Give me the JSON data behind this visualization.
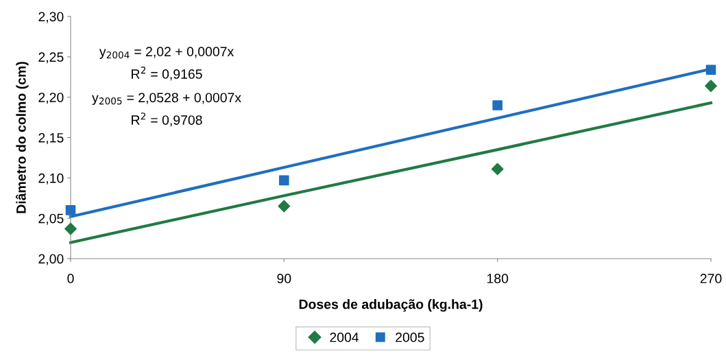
{
  "chart_data": {
    "type": "scatter",
    "xlabel": "Doses de adubação (kg.ha-1)",
    "ylabel": "Diâmetro do colmo (cm)",
    "x": [
      0,
      90,
      180,
      270
    ],
    "series": [
      {
        "name": "2004",
        "color": "#217a45",
        "marker": "diamond",
        "values": [
          2.037,
          2.065,
          2.111,
          2.214
        ]
      },
      {
        "name": "2005",
        "color": "#1f6fbf",
        "marker": "square",
        "values": [
          2.06,
          2.097,
          2.19,
          2.234
        ]
      },
      {
        "type": "line",
        "color": "#217a45",
        "values": [
          2.02,
          2.078,
          2.135,
          2.193
        ]
      },
      {
        "type": "line",
        "color": "#1f6fbf",
        "values": [
          2.052,
          2.113,
          2.174,
          2.235
        ]
      }
    ],
    "xlim": [
      0,
      270
    ],
    "xticks": [
      0,
      90,
      180,
      270
    ],
    "ylim": [
      2.0,
      2.3
    ],
    "yticks": [
      {
        "value": 2.0,
        "label": "2,00"
      },
      {
        "value": 2.05,
        "label": "2,05"
      },
      {
        "value": 2.1,
        "label": "2,10"
      },
      {
        "value": 2.15,
        "label": "2,15"
      },
      {
        "value": 2.2,
        "label": "2,20"
      },
      {
        "value": 2.25,
        "label": "2,25"
      },
      {
        "value": 2.3,
        "label": "2,30"
      }
    ],
    "annotations": [
      "y$_{2004}$ = 2,02 + 0,0007x",
      "R$^{2}$ = 0,9165",
      "y$_{2005}$ = 2,0528 + 0,0007x",
      "R$^{2}$ = 0,9708"
    ],
    "grid": false,
    "legend": "bottom"
  }
}
